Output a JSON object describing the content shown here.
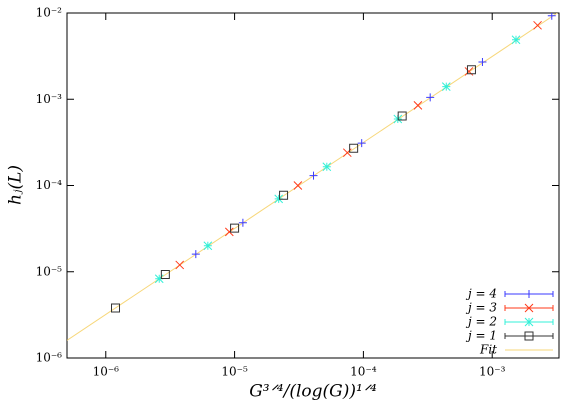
{
  "chart_data": {
    "type": "scatter",
    "xlabel": "G³ᐟ⁴/(log(G))¹ᐟ⁴",
    "ylabel": "hⱼ(L)",
    "xscale": "log",
    "yscale": "log",
    "xlim": [
      5e-07,
      0.0033
    ],
    "ylim": [
      1e-06,
      0.01
    ],
    "xticks": [
      {
        "value": 1e-06,
        "label": "10⁻⁶"
      },
      {
        "value": 1e-05,
        "label": "10⁻⁵"
      },
      {
        "value": 0.0001,
        "label": "10⁻⁴"
      },
      {
        "value": 0.001,
        "label": "10⁻³"
      }
    ],
    "yticks": [
      {
        "value": 1e-06,
        "label": "10⁻⁶"
      },
      {
        "value": 1e-05,
        "label": "10⁻⁵"
      },
      {
        "value": 0.0001,
        "label": "10⁻⁴"
      },
      {
        "value": 0.001,
        "label": "10⁻³"
      },
      {
        "value": 0.01,
        "label": "10⁻²"
      }
    ],
    "legend": "lower right",
    "series": [
      {
        "name": "j = 4",
        "color": "#3a3aff",
        "marker": "plus",
        "x": [
          5e-06,
          1.16e-05,
          4.1e-05,
          9.7e-05,
          0.00033,
          0.00084,
          0.0029
        ],
        "values": [
          1.6e-05,
          3.7e-05,
          0.00013,
          0.00031,
          0.00105,
          0.0027,
          0.0093
        ]
      },
      {
        "name": "j = 3",
        "color": "#ff3a1a",
        "marker": "cross",
        "x": [
          3.75e-06,
          9.1e-06,
          3.1e-05,
          7.5e-05,
          0.000265,
          0.00066,
          0.00225
        ],
        "values": [
          1.2e-05,
          2.9e-05,
          0.0001,
          0.00024,
          0.00085,
          0.0021,
          0.0072
        ]
      },
      {
        "name": "j = 2",
        "color": "#33f0d8",
        "marker": "star",
        "x": [
          2.6e-06,
          6.2e-06,
          2.2e-05,
          5.2e-05,
          0.000185,
          0.00044,
          0.00153
        ],
        "values": [
          8.3e-06,
          2e-05,
          7e-05,
          0.000165,
          0.00059,
          0.0014,
          0.0049
        ]
      },
      {
        "name": "j = 1",
        "color": "#333333",
        "marker": "square",
        "x": [
          1.19e-06,
          2.9e-06,
          1e-05,
          2.4e-05,
          8.4e-05,
          0.0002,
          0.00069
        ],
        "values": [
          3.8e-06,
          9.3e-06,
          3.2e-05,
          7.7e-05,
          0.00027,
          0.00064,
          0.0022
        ]
      },
      {
        "name": "Fit",
        "color": "#f7d77a",
        "marker": "line",
        "x": [
          5e-07,
          0.0032
        ],
        "values": [
          1.6e-06,
          0.01
        ]
      }
    ]
  }
}
